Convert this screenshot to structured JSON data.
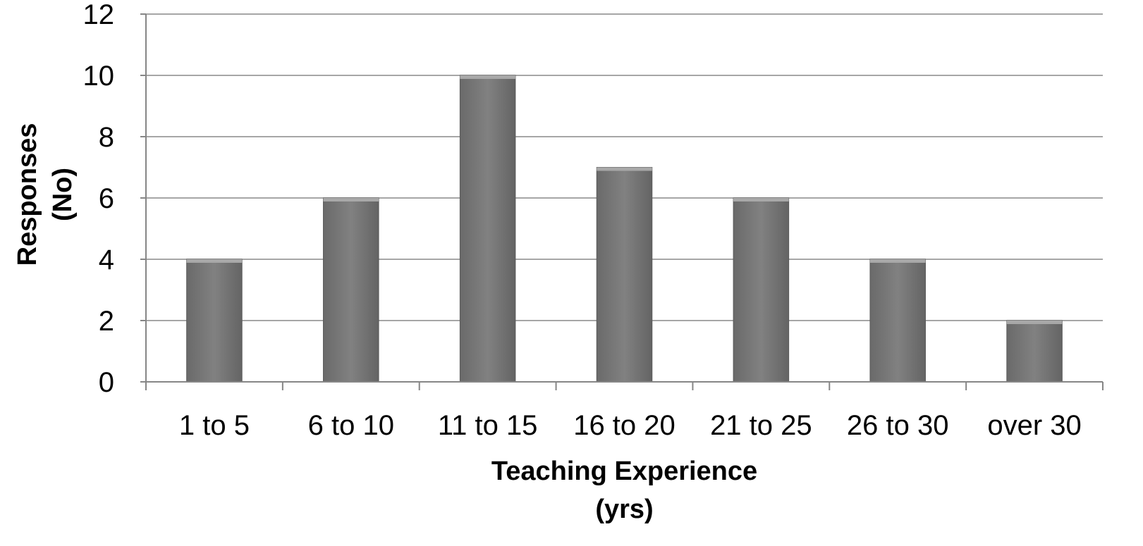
{
  "chart_data": {
    "type": "bar",
    "categories": [
      "1 to 5",
      "6 to 10",
      "11 to 15",
      "16 to 20",
      "21 to 25",
      "26 to 30",
      "over 30"
    ],
    "values": [
      4,
      6,
      10,
      7,
      6,
      4,
      2
    ],
    "title": "",
    "xlabel_lines": [
      "Teaching Experience",
      "(yrs)"
    ],
    "ylabel_lines": [
      "Responses",
      "(No)"
    ],
    "ylim": [
      0,
      12
    ],
    "yticks": [
      0,
      2,
      4,
      6,
      8,
      10,
      12
    ],
    "grid": true,
    "legend": "none",
    "colors": {
      "bar": "#7a7a7a",
      "bar_top": "#a8a8a8",
      "grid": "#a6a6a6",
      "axis": "#868686"
    }
  }
}
